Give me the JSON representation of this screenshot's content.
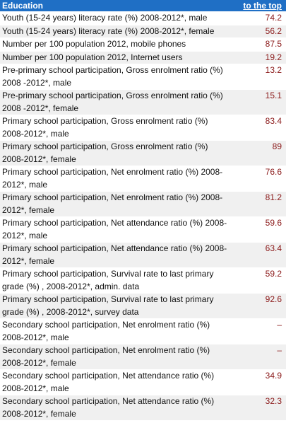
{
  "header": {
    "section_title": "Education",
    "top_link": "to the top"
  },
  "rows": [
    {
      "label": "Youth (15-24 years) literacy rate (%) 2008-2012*, male",
      "value": "74.2"
    },
    {
      "label": "Youth (15-24 years) literacy rate (%) 2008-2012*, female",
      "value": "56.2"
    },
    {
      "label": "Number per 100 population 2012, mobile phones",
      "value": "87.5"
    },
    {
      "label": "Number per 100 population 2012, Internet users",
      "value": "19.2"
    },
    {
      "label": "Pre-primary school participation, Gross enrolment ratio (%) 2008 -2012*, male",
      "value": "13.2"
    },
    {
      "label": "Pre-primary school participation, Gross enrolment ratio (%) 2008 -2012*, female",
      "value": "15.1"
    },
    {
      "label": "Primary school participation, Gross enrolment ratio (%) 2008-2012*, male",
      "value": "83.4"
    },
    {
      "label": "Primary school participation, Gross enrolment ratio (%) 2008-2012*, female",
      "value": "89"
    },
    {
      "label": "Primary school participation, Net enrolment ratio (%) 2008-2012*, male",
      "value": "76.6"
    },
    {
      "label": "Primary school participation, Net enrolment ratio (%) 2008-2012*, female",
      "value": "81.2"
    },
    {
      "label": "Primary school participation, Net attendance ratio (%) 2008-2012*, male",
      "value": "59.6"
    },
    {
      "label": "Primary school participation, Net attendance ratio (%) 2008-2012*, female",
      "value": "63.4"
    },
    {
      "label": "Primary school participation, Survival rate to last primary grade (%) , 2008-2012*, admin. data",
      "value": "59.2"
    },
    {
      "label": "Primary school participation, Survival rate to last primary grade (%) , 2008-2012*, survey data",
      "value": "92.6"
    },
    {
      "label": "Secondary school participation, Net enrolment ratio (%) 2008-2012*, male",
      "value": "–"
    },
    {
      "label": "Secondary school participation, Net enrolment ratio (%) 2008-2012*, female",
      "value": "–"
    },
    {
      "label": "Secondary school participation, Net attendance ratio (%) 2008-2012*, male",
      "value": "34.9"
    },
    {
      "label": "Secondary school participation, Net attendance ratio (%) 2008-2012*, female",
      "value": "32.3"
    }
  ],
  "colors": {
    "header_bg": "#1f6fc5",
    "header_text": "#ffffff",
    "value_text": "#8b1a1a",
    "stripe": "#f0f0f0"
  }
}
